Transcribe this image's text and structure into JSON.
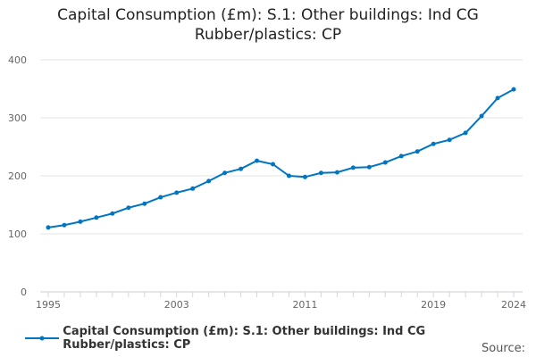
{
  "chart_data": {
    "type": "line",
    "title": "Capital Consumption (£m): S.1: Other buildings: Ind CG Rubber/plastics: CP",
    "xlabel": "",
    "ylabel": "",
    "ylim": [
      0,
      400
    ],
    "yticks": [
      0,
      100,
      200,
      300,
      400
    ],
    "xtick_labels": [
      "1995",
      "2003",
      "2011",
      "2019",
      "2024"
    ],
    "x": [
      1995,
      1996,
      1997,
      1998,
      1999,
      2000,
      2001,
      2002,
      2003,
      2004,
      2005,
      2006,
      2007,
      2008,
      2009,
      2010,
      2011,
      2012,
      2013,
      2014,
      2015,
      2016,
      2017,
      2018,
      2019,
      2020,
      2021,
      2022,
      2023,
      2024
    ],
    "series": [
      {
        "name": "Capital Consumption (£m): S.1: Other buildings: Ind CG Rubber/plastics: CP",
        "color": "#0075c2",
        "values": [
          111,
          115,
          121,
          128,
          135,
          145,
          152,
          163,
          171,
          178,
          191,
          205,
          212,
          226,
          220,
          200,
          198,
          205,
          206,
          214,
          215,
          223,
          234,
          242,
          255,
          262,
          274,
          303,
          334,
          349
        ]
      }
    ],
    "legend": "bottom",
    "grid": true,
    "source_label": "Source:"
  }
}
